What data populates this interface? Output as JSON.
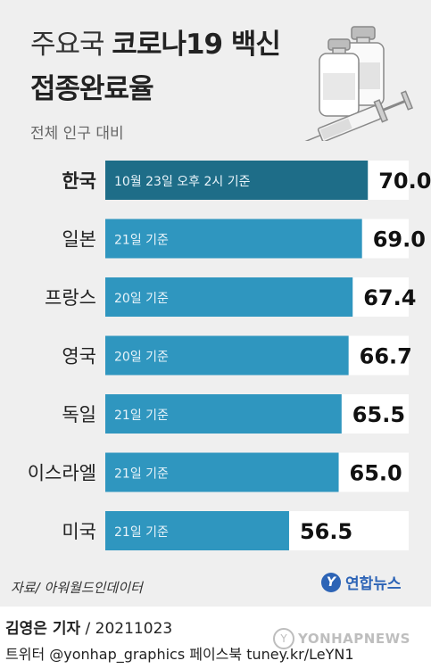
{
  "header": {
    "title_prefix": "주요국",
    "title_main": "코로나19 백신",
    "title_line2": "접종완료율",
    "subtitle": "전체 인구 대비"
  },
  "illustration": {
    "icon": "vaccine-vials-syringe-icon"
  },
  "colors": {
    "bar": "#2f96bf",
    "highlight_bar": "#1e6d88",
    "track": "#ffffff",
    "background": "#efefef"
  },
  "chart_data": {
    "type": "bar",
    "orientation": "horizontal",
    "categories": [
      "한국",
      "일본",
      "프랑스",
      "영국",
      "독일",
      "이스라엘",
      "미국"
    ],
    "values": [
      70.0,
      69.0,
      67.4,
      66.7,
      65.5,
      65.0,
      56.5
    ],
    "value_labels": [
      "70.0%",
      "69.0",
      "67.4",
      "66.7",
      "65.5",
      "65.0",
      "56.5"
    ],
    "bar_notes": [
      "10월 23일 오후 2시 기준",
      "21일 기준",
      "20일 기준",
      "20일 기준",
      "21일 기준",
      "21일 기준",
      "21일 기준"
    ],
    "highlight": "한국",
    "unit": "%",
    "xlim": [
      0,
      100
    ],
    "grid": false
  },
  "source": "자료/ 아워월드인데이터",
  "logo": {
    "mark": "Y",
    "text": "연합뉴스"
  },
  "footer": {
    "reporter": "김영은 기자",
    "date": "20211023",
    "social": "트위터 @yonhap_graphics  페이스북 tuney.kr/LeYN1",
    "watermark": "YONHAPNEWS"
  }
}
